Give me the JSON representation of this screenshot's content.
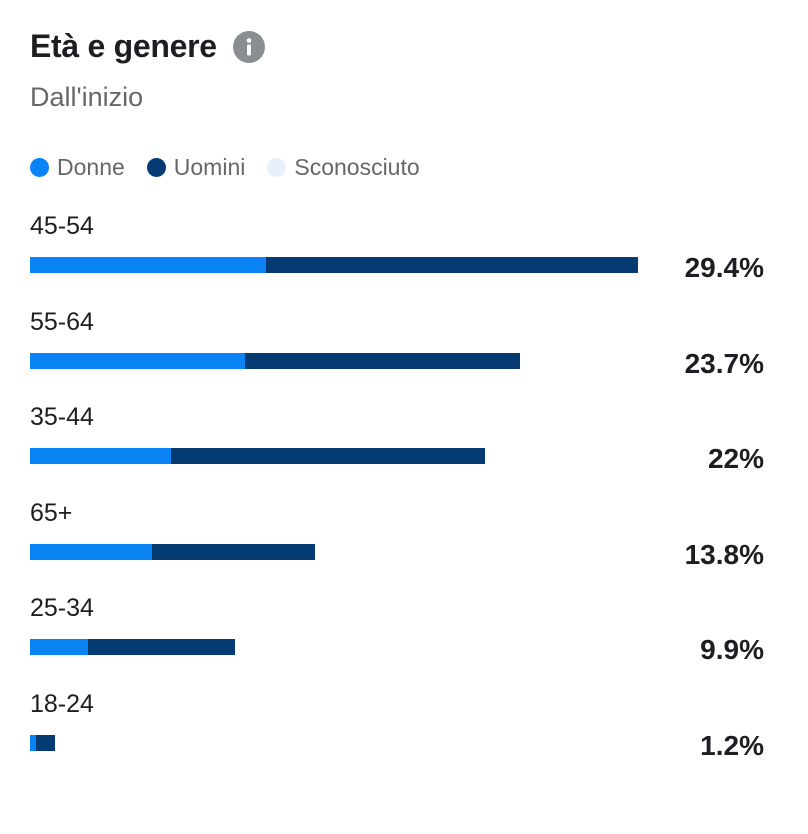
{
  "header": {
    "title": "Età e genere",
    "subtitle": "Dall'inizio",
    "info_icon": "info-icon"
  },
  "colors": {
    "donne": "#0a84f5",
    "uomini": "#063a73",
    "sconosciuto": "#e8f0fe"
  },
  "legend": [
    {
      "label": "Donne",
      "color": "#0a84f5"
    },
    {
      "label": "Uomini",
      "color": "#063a73"
    },
    {
      "label": "Sconosciuto",
      "color": "#e8f0fe"
    }
  ],
  "chart_data": {
    "type": "bar",
    "orientation": "horizontal",
    "stacked": true,
    "title": "Età e genere",
    "subtitle": "Dall'inizio",
    "categories": [
      "45-54",
      "55-64",
      "35-44",
      "65+",
      "25-34",
      "18-24"
    ],
    "value_labels": [
      "29.4%",
      "23.7%",
      "22%",
      "13.8%",
      "9.9%",
      "1.2%"
    ],
    "totals": [
      29.4,
      23.7,
      22,
      13.8,
      9.9,
      1.2
    ],
    "series": [
      {
        "name": "Donne",
        "values": [
          11.4,
          10.4,
          6.8,
          5.9,
          2.8,
          0.3
        ]
      },
      {
        "name": "Uomini",
        "values": [
          18.0,
          13.3,
          15.2,
          7.9,
          7.1,
          0.9
        ]
      },
      {
        "name": "Sconosciuto",
        "values": [
          0,
          0,
          0,
          0,
          0,
          0
        ]
      }
    ],
    "xlim": [
      0,
      29.4
    ],
    "legend_position": "top-left"
  }
}
